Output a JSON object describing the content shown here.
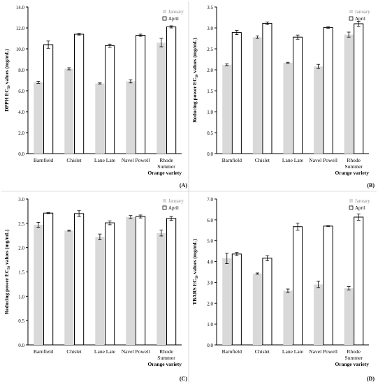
{
  "figure": {
    "legend_labels": [
      "January",
      "April"
    ],
    "x_group_label": "Orange variety"
  },
  "chart_data": [
    {
      "panel": "(A)",
      "type": "bar",
      "categories": [
        "Barnfield",
        "Chislet",
        "Lane Late",
        "Navel Powell",
        "Rhode Summer"
      ],
      "series": [
        {
          "name": "January",
          "values": [
            6.8,
            8.1,
            6.7,
            6.9,
            10.6
          ],
          "errors": [
            0.1,
            0.1,
            0.05,
            0.15,
            0.4
          ]
        },
        {
          "name": "April",
          "values": [
            10.4,
            11.4,
            10.3,
            11.3,
            12.1
          ],
          "errors": [
            0.35,
            0.08,
            0.15,
            0.1,
            0.1
          ]
        }
      ],
      "ylabel_main": "DPPH EC",
      "ylabel_sub": "50",
      "ylabel_rest": " values (mg/mL)",
      "xlabel": "Orange variety",
      "ylim": [
        0,
        14
      ],
      "yticks": [
        "0.0",
        "2.0",
        "4.0",
        "6.0",
        "8.0",
        "10.0",
        "12.0",
        "14.0"
      ],
      "legend_position": "top-right",
      "grid": false,
      "colors": {
        "January": "#d9d9d9",
        "April": "#ffffff"
      }
    },
    {
      "panel": "(B)",
      "type": "bar",
      "categories": [
        "Barnfield",
        "Chislet",
        "Lane Late",
        "Navel Powell",
        "Rhode Summer"
      ],
      "series": [
        {
          "name": "January",
          "values": [
            2.12,
            2.78,
            2.17,
            2.08,
            2.84
          ],
          "errors": [
            0.02,
            0.03,
            0.01,
            0.05,
            0.06
          ]
        },
        {
          "name": "April",
          "values": [
            2.89,
            3.11,
            2.78,
            3.01,
            3.1
          ],
          "errors": [
            0.05,
            0.03,
            0.05,
            0.02,
            0.06
          ]
        }
      ],
      "ylabel_main": "Reducing power EC",
      "ylabel_sub": "50",
      "ylabel_rest": " values (mg/mL)",
      "xlabel": "Orange variety",
      "ylim": [
        0,
        3.5
      ],
      "yticks": [
        "0.0",
        "0.5",
        "1.0",
        "1.5",
        "2.0",
        "2.5",
        "3.0",
        "3.5"
      ],
      "legend_position": "top-right",
      "grid": false,
      "colors": {
        "January": "#d9d9d9",
        "April": "#ffffff"
      }
    },
    {
      "panel": "(C)",
      "type": "bar",
      "categories": [
        "Barnfield",
        "Chislet",
        "Lane Late",
        "Navel Powell",
        "Rhode Summer"
      ],
      "series": [
        {
          "name": "January",
          "values": [
            2.47,
            2.35,
            2.22,
            2.63,
            2.3
          ],
          "errors": [
            0.05,
            0.01,
            0.06,
            0.03,
            0.06
          ]
        },
        {
          "name": "April",
          "values": [
            2.71,
            2.7,
            2.51,
            2.64,
            2.6
          ],
          "errors": [
            0.01,
            0.06,
            0.04,
            0.03,
            0.04
          ]
        }
      ],
      "ylabel_main": "Reducing power EC",
      "ylabel_sub": "50",
      "ylabel_rest": " values (mg/mL)",
      "xlabel": "Orange variety",
      "ylim": [
        0,
        3.0
      ],
      "yticks": [
        "0.0",
        "0.5",
        "1.0",
        "1.5",
        "2.0",
        "2.5",
        "3.0"
      ],
      "legend_position": "top-right",
      "grid": false,
      "colors": {
        "January": "#d9d9d9",
        "April": "#ffffff"
      }
    },
    {
      "panel": "(D)",
      "type": "bar",
      "categories": [
        "Barnfield",
        "Chislet",
        "Lane Late",
        "Navel Powell",
        "Rhode Summer"
      ],
      "series": [
        {
          "name": "January",
          "values": [
            4.15,
            3.42,
            2.6,
            2.9,
            2.72
          ],
          "errors": [
            0.25,
            0.03,
            0.08,
            0.15,
            0.08
          ]
        },
        {
          "name": "April",
          "values": [
            4.36,
            4.16,
            5.67,
            5.7,
            6.13
          ],
          "errors": [
            0.07,
            0.12,
            0.17,
            0.02,
            0.15
          ]
        }
      ],
      "ylabel_main": "TBARS EC",
      "ylabel_sub": "50",
      "ylabel_rest": " values (mg/mL)",
      "xlabel": "Orange variety",
      "ylim": [
        0,
        7.0
      ],
      "yticks": [
        "0.0",
        "1.0",
        "2.0",
        "3.0",
        "4.0",
        "5.0",
        "6.0",
        "7.0"
      ],
      "legend_position": "top-right",
      "grid": false,
      "colors": {
        "January": "#d9d9d9",
        "April": "#ffffff"
      }
    }
  ]
}
